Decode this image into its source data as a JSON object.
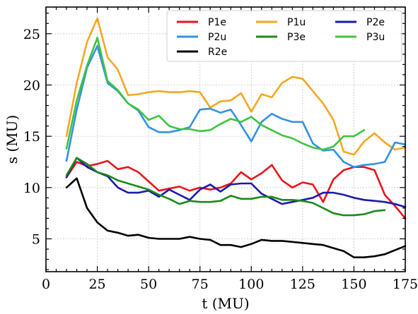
{
  "chart_data": {
    "type": "line",
    "title": "",
    "xlabel": "t (MU)",
    "ylabel": "s (MU)",
    "xlim": [
      0,
      175
    ],
    "ylim": [
      1.8,
      27.6
    ],
    "xticks": [
      0,
      25,
      50,
      75,
      100,
      125,
      150,
      175
    ],
    "yticks": [
      5,
      10,
      15,
      20,
      25
    ],
    "grid": true,
    "legend_position": "top-right",
    "series": [
      {
        "name": "P1e",
        "color": "#e8141c",
        "x": [
          10,
          15,
          20,
          25,
          30,
          35,
          40,
          45,
          50,
          55,
          60,
          65,
          70,
          75,
          80,
          85,
          90,
          95,
          100,
          105,
          110,
          115,
          120,
          125,
          130,
          135,
          140,
          145,
          150,
          155,
          160,
          165,
          170,
          175
        ],
        "y": [
          11.0,
          12.5,
          12.1,
          12.3,
          12.6,
          11.8,
          12.0,
          11.5,
          10.6,
          9.7,
          9.9,
          10.1,
          9.7,
          10.0,
          9.8,
          10.0,
          10.4,
          11.5,
          10.8,
          11.4,
          12.2,
          10.7,
          10.0,
          10.5,
          10.3,
          8.6,
          10.8,
          11.7,
          12.0,
          12.0,
          11.7,
          9.3,
          8.2,
          7.0
        ]
      },
      {
        "name": "P1u",
        "color": "#f5a623",
        "x": [
          10,
          15,
          20,
          25,
          30,
          35,
          40,
          45,
          50,
          55,
          60,
          65,
          70,
          75,
          80,
          85,
          90,
          95,
          100,
          105,
          110,
          115,
          120,
          125,
          130,
          135,
          140,
          145,
          150,
          155,
          160,
          165,
          170,
          175
        ],
        "y": [
          15.0,
          20.2,
          24.2,
          26.5,
          22.7,
          21.5,
          19.0,
          19.1,
          19.3,
          19.4,
          19.3,
          19.3,
          19.4,
          19.3,
          17.8,
          18.4,
          18.5,
          19.2,
          17.4,
          19.1,
          18.8,
          20.2,
          20.8,
          20.6,
          19.4,
          18.2,
          16.6,
          13.5,
          13.2,
          14.5,
          15.3,
          14.4,
          13.7,
          13.9
        ]
      },
      {
        "name": "P2e",
        "color": "#1a1aaf",
        "x": [
          10,
          15,
          20,
          25,
          30,
          35,
          40,
          45,
          50,
          55,
          60,
          65,
          70,
          75,
          80,
          85,
          90,
          95,
          100,
          105,
          110,
          115,
          120,
          125,
          130,
          135,
          140,
          145,
          150,
          155,
          160,
          165,
          170,
          175
        ],
        "y": [
          11.0,
          12.9,
          12.0,
          11.5,
          11.1,
          10.0,
          9.5,
          9.5,
          9.7,
          9.1,
          9.8,
          9.3,
          8.8,
          9.8,
          10.3,
          9.6,
          10.3,
          10.4,
          10.4,
          9.4,
          8.9,
          8.4,
          8.6,
          8.8,
          9.0,
          9.5,
          9.5,
          9.3,
          9.0,
          8.8,
          8.7,
          8.6,
          8.4,
          8.1
        ]
      },
      {
        "name": "P2u",
        "color": "#3391e3",
        "x": [
          10,
          15,
          20,
          25,
          30,
          35,
          40,
          45,
          50,
          55,
          60,
          65,
          70,
          75,
          80,
          85,
          90,
          95,
          100,
          105,
          110,
          115,
          120,
          125,
          130,
          135,
          140,
          145,
          150,
          155,
          160,
          165,
          170,
          175
        ],
        "y": [
          12.6,
          17.6,
          21.7,
          23.8,
          20.2,
          19.4,
          18.2,
          17.5,
          15.9,
          15.4,
          15.4,
          15.6,
          15.9,
          17.6,
          17.7,
          17.3,
          17.6,
          16.1,
          14.5,
          16.4,
          17.2,
          16.7,
          16.4,
          16.4,
          14.3,
          13.6,
          13.7,
          12.5,
          12.0,
          12.2,
          12.3,
          12.5,
          14.4,
          14.2
        ]
      },
      {
        "name": "P3e",
        "color": "#1a8a1a",
        "x": [
          10,
          15,
          20,
          25,
          30,
          35,
          40,
          45,
          50,
          55,
          60,
          65,
          70,
          75,
          80,
          85,
          90,
          95,
          100,
          105,
          110,
          115,
          120,
          125,
          130,
          135,
          140,
          145,
          150,
          155,
          160,
          165
        ],
        "y": [
          11.2,
          12.9,
          12.3,
          11.5,
          11.2,
          10.7,
          10.4,
          10.1,
          9.8,
          9.3,
          8.9,
          8.4,
          8.7,
          8.6,
          8.6,
          8.7,
          9.2,
          8.9,
          8.9,
          9.1,
          9.1,
          8.8,
          8.8,
          8.7,
          8.5,
          8.0,
          7.5,
          7.3,
          7.3,
          7.4,
          7.7,
          7.8
        ]
      },
      {
        "name": "P3u",
        "color": "#3ec43e",
        "x": [
          10,
          15,
          20,
          25,
          30,
          35,
          40,
          45,
          50,
          55,
          60,
          65,
          70,
          75,
          80,
          85,
          90,
          95,
          100,
          105,
          110,
          115,
          120,
          125,
          130,
          135,
          140,
          145,
          150,
          155
        ],
        "y": [
          13.8,
          18.5,
          21.9,
          24.6,
          20.4,
          19.5,
          18.2,
          17.6,
          16.6,
          17.0,
          16.0,
          15.7,
          15.7,
          15.5,
          15.6,
          16.2,
          16.7,
          16.4,
          16.9,
          16.1,
          15.6,
          15.1,
          14.8,
          14.3,
          13.9,
          13.7,
          14.0,
          15.0,
          15.0,
          15.6
        ]
      },
      {
        "name": "R2e",
        "color": "#000000",
        "x": [
          10,
          15,
          20,
          25,
          30,
          35,
          40,
          45,
          50,
          55,
          60,
          65,
          70,
          75,
          80,
          85,
          90,
          95,
          100,
          105,
          110,
          115,
          120,
          125,
          130,
          135,
          140,
          145,
          150,
          155,
          160,
          165,
          170,
          175
        ],
        "y": [
          10.0,
          10.9,
          8.0,
          6.6,
          5.8,
          5.6,
          5.3,
          5.4,
          5.1,
          5.0,
          5.0,
          5.0,
          5.2,
          5.0,
          4.9,
          4.4,
          4.4,
          4.2,
          4.5,
          4.9,
          4.8,
          4.8,
          4.7,
          4.6,
          4.5,
          4.4,
          4.1,
          3.8,
          3.2,
          3.2,
          3.3,
          3.5,
          3.9,
          4.3
        ]
      }
    ]
  }
}
